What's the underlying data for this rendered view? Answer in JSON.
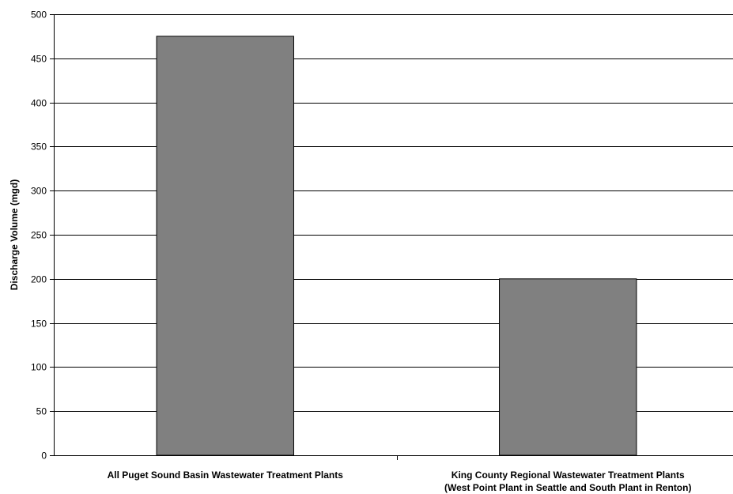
{
  "chart_data": {
    "type": "bar",
    "title": "",
    "xlabel": "",
    "ylabel": "Discharge Volume (mgd)",
    "ylim": [
      0,
      500
    ],
    "ytick_step": 50,
    "grid": true,
    "categories": [
      [
        "All Puget Sound Basin Wastewater Treatment Plants"
      ],
      [
        "King County Regional Wastewater Treatment Plants",
        "(West Point Plant in Seattle and South Plant in Renton)"
      ]
    ],
    "values": [
      475,
      200
    ],
    "colors": {
      "bar": "#808080",
      "bar_edge": "#000000",
      "grid": "#000000",
      "axis": "#000000"
    }
  }
}
